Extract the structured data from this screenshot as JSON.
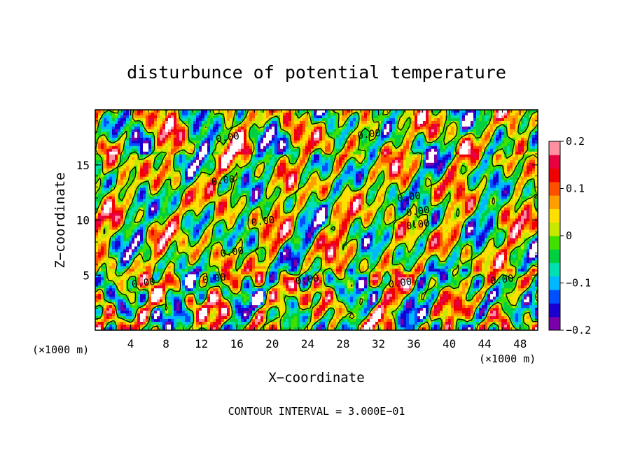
{
  "chart_data": {
    "type": "heatmap",
    "title": "disturbunce of potential temperature",
    "xlabel": "X−coordinate",
    "ylabel": "Z−coordinate",
    "x_unit": "(×1000 m)",
    "x_unit_right": "(×1000 m)",
    "footer": "CONTOUR INTERVAL = 3.000E−01",
    "xlim": [
      0,
      50
    ],
    "ylim": [
      0,
      20
    ],
    "x_ticks": [
      "4",
      "8",
      "12",
      "16",
      "20",
      "24",
      "28",
      "32",
      "36",
      "40",
      "44",
      "48"
    ],
    "y_ticks": [
      "5",
      "10",
      "15"
    ],
    "colorbar": {
      "range": [
        -0.2,
        0.2
      ],
      "tick_labels": [
        "0.2",
        "0.1",
        "0",
        "−0.1",
        "−0.2"
      ],
      "colors": [
        "#7a00aa",
        "#1a00d0",
        "#0050ff",
        "#00b8ff",
        "#00e0b0",
        "#00d040",
        "#40e000",
        "#c8e800",
        "#ffe000",
        "#ffa000",
        "#ff5000",
        "#f00000",
        "#e80040",
        "#ff90a0"
      ]
    },
    "contour_interval": 0.3,
    "contour_labels": [
      "0.00",
      "0.00",
      "0.00",
      "0.00",
      "0.00",
      "0.00",
      "0.00",
      "0.00",
      "0.00",
      "0.00",
      "0.00",
      "0.00",
      "0.00"
    ]
  }
}
